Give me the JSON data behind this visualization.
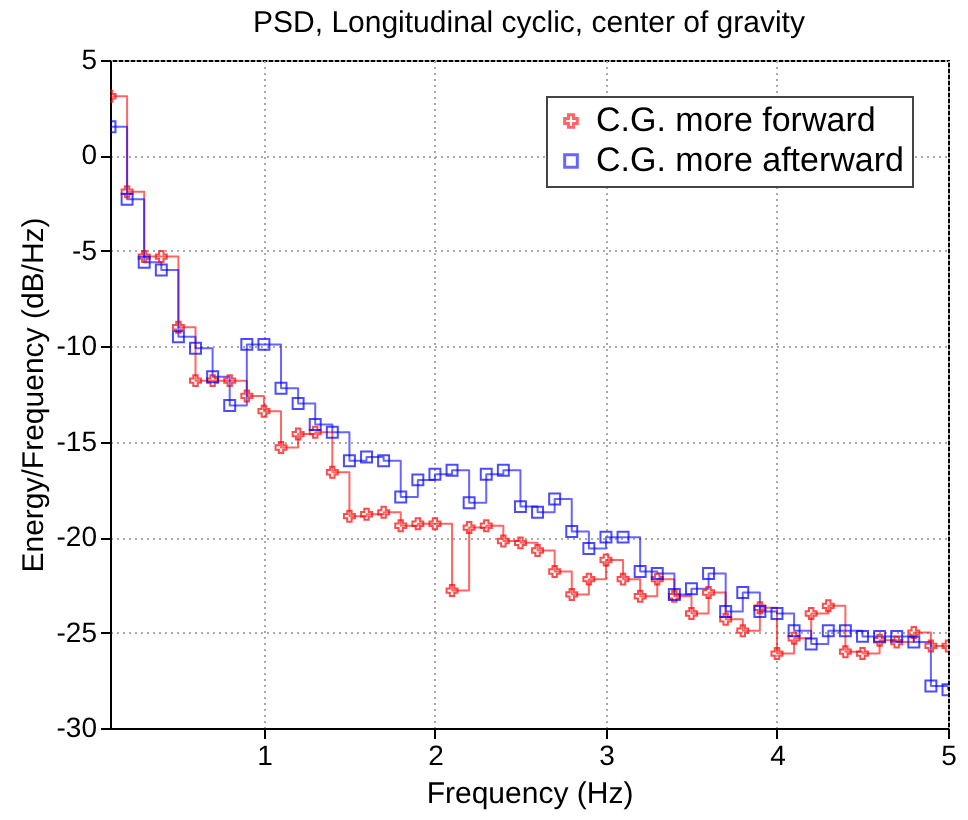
{
  "chart_data": {
    "type": "step",
    "title": "PSD, Longitudinal cyclic, center of gravity",
    "xlabel": "Frequency (Hz)",
    "ylabel": "Energy/Frequency (dB/Hz)",
    "x": [
      0.1,
      0.2,
      0.3,
      0.4,
      0.5,
      0.6,
      0.7,
      0.8,
      0.9,
      1.0,
      1.1,
      1.2,
      1.3,
      1.4,
      1.5,
      1.6,
      1.7,
      1.8,
      1.9,
      2.0,
      2.1,
      2.2,
      2.3,
      2.4,
      2.5,
      2.6,
      2.7,
      2.8,
      2.9,
      3.0,
      3.1,
      3.2,
      3.3,
      3.4,
      3.5,
      3.6,
      3.7,
      3.8,
      3.9,
      4.0,
      4.1,
      4.2,
      4.3,
      4.4,
      4.5,
      4.6,
      4.7,
      4.8,
      4.9,
      5.0
    ],
    "series": [
      {
        "name": "C.G. more forward",
        "color": "#ff0000",
        "marker": "cross",
        "values": [
          3.1,
          -1.9,
          -5.3,
          -5.3,
          -9.0,
          -11.8,
          -11.8,
          -11.8,
          -12.6,
          -13.4,
          -15.3,
          -14.6,
          -14.5,
          -16.6,
          -18.9,
          -18.8,
          -18.7,
          -19.4,
          -19.3,
          -19.3,
          -22.8,
          -19.5,
          -19.4,
          -20.2,
          -20.3,
          -20.7,
          -21.8,
          -23.0,
          -22.2,
          -21.2,
          -22.2,
          -23.1,
          -22.2,
          -23.1,
          -24.0,
          -22.9,
          -24.3,
          -24.9,
          -23.7,
          -26.1,
          -25.3,
          -24.0,
          -23.6,
          -26.0,
          -26.1,
          -25.4,
          -25.5,
          -25.0,
          -25.7,
          -25.7
        ]
      },
      {
        "name": "C.G. more afterward",
        "color": "#0000ff",
        "marker": "square",
        "values": [
          1.5,
          -2.3,
          -5.6,
          -6.0,
          -9.5,
          -10.1,
          -11.6,
          -13.1,
          -9.9,
          -9.9,
          -12.2,
          -13.0,
          -14.1,
          -14.5,
          -16.0,
          -15.8,
          -16.0,
          -17.9,
          -17.0,
          -16.7,
          -16.5,
          -18.2,
          -16.7,
          -16.5,
          -18.4,
          -18.7,
          -18.0,
          -19.7,
          -20.6,
          -20.0,
          -20.0,
          -21.8,
          -21.9,
          -23.0,
          -22.7,
          -21.9,
          -23.9,
          -22.9,
          -23.9,
          -24.0,
          -24.9,
          -25.6,
          -24.9,
          -24.9,
          -25.2,
          -25.2,
          -25.2,
          -25.5,
          -27.8,
          -28.0
        ]
      }
    ],
    "xlim": [
      0.1,
      5
    ],
    "xticks": [
      {
        "value": 1,
        "label": "1"
      },
      {
        "value": 2,
        "label": "2"
      },
      {
        "value": 3,
        "label": "3"
      },
      {
        "value": 4,
        "label": "4"
      },
      {
        "value": 5,
        "label": "5"
      }
    ],
    "ylim": [
      -30,
      5
    ],
    "yticks": [
      -30,
      -25,
      -20,
      -15,
      -10,
      -5,
      0,
      5
    ],
    "grid": true,
    "legend": "top right"
  }
}
